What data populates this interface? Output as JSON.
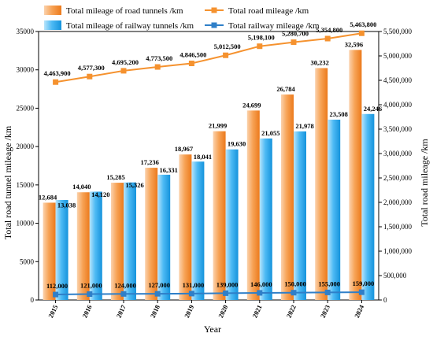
{
  "chart_data": {
    "type": "bar",
    "categories": [
      "2015",
      "2016",
      "2017",
      "2018",
      "2019",
      "2020",
      "2021",
      "2022",
      "2023",
      "2024"
    ],
    "xlabel": "Year",
    "ylabel_left": "Total road tunnel mileage /km",
    "ylabel_right": "Total road mileage /km",
    "ylim_left": [
      0,
      35000
    ],
    "ylim_right": [
      0,
      5500000
    ],
    "yticks_left": [
      "0",
      "5000",
      "10000",
      "15000",
      "20000",
      "25000",
      "30000",
      "35000"
    ],
    "yticks_right": [
      "0",
      "500,000",
      "1,000,000",
      "1,500,000",
      "2,000,000",
      "2,500,000",
      "3,000,000",
      "3,500,000",
      "4,000,000",
      "4,500,000",
      "5,000,000",
      "5,500,000"
    ],
    "legend_position": "top",
    "series": [
      {
        "name": "Total mileage of road tunnels /km",
        "kind": "bar",
        "axis": "left",
        "color": "#f5922f",
        "values": [
          12684,
          14040,
          15285,
          17236,
          18967,
          21999,
          24699,
          26784,
          30232,
          32596
        ],
        "labels": [
          "12,684",
          "14,040",
          "15,285",
          "17,236",
          "18,967",
          "21,999",
          "24,699",
          "26,784",
          "30,232",
          "32,596"
        ]
      },
      {
        "name": "Total mileage of railway tunnels /km",
        "kind": "bar",
        "axis": "left",
        "color": "#29a9f0",
        "values": [
          13038,
          14120,
          15326,
          16331,
          18041,
          19630,
          21055,
          21978,
          23508,
          24246
        ],
        "labels": [
          "13,038",
          "14,120",
          "15,326",
          "16,331",
          "18,041",
          "19,630",
          "21,055",
          "21,978",
          "23,508",
          "24,246"
        ]
      },
      {
        "name": "Total road mileage /km",
        "kind": "line",
        "axis": "right",
        "color": "#f5922f",
        "values": [
          4463900,
          4577300,
          4695200,
          4773500,
          4846500,
          5012500,
          5198100,
          5280700,
          5354800,
          5463800
        ],
        "labels": [
          "4,463,900",
          "4,577,300",
          "4,695,200",
          "4,773,500",
          "4,846,500",
          "5,012,500",
          "5,198,100",
          "5,280,700",
          "5,354,800",
          "5,463,800"
        ]
      },
      {
        "name": "Total railway mileage /km",
        "kind": "line",
        "axis": "right",
        "color": "#2f7fc8",
        "values": [
          112000,
          121000,
          124000,
          127000,
          131000,
          139000,
          146000,
          150000,
          155000,
          159000
        ],
        "labels": [
          "112,000",
          "121,000",
          "124,000",
          "127,000",
          "131,000",
          "139,000",
          "146,000",
          "150,000",
          "155,000",
          "159,000"
        ]
      }
    ]
  }
}
